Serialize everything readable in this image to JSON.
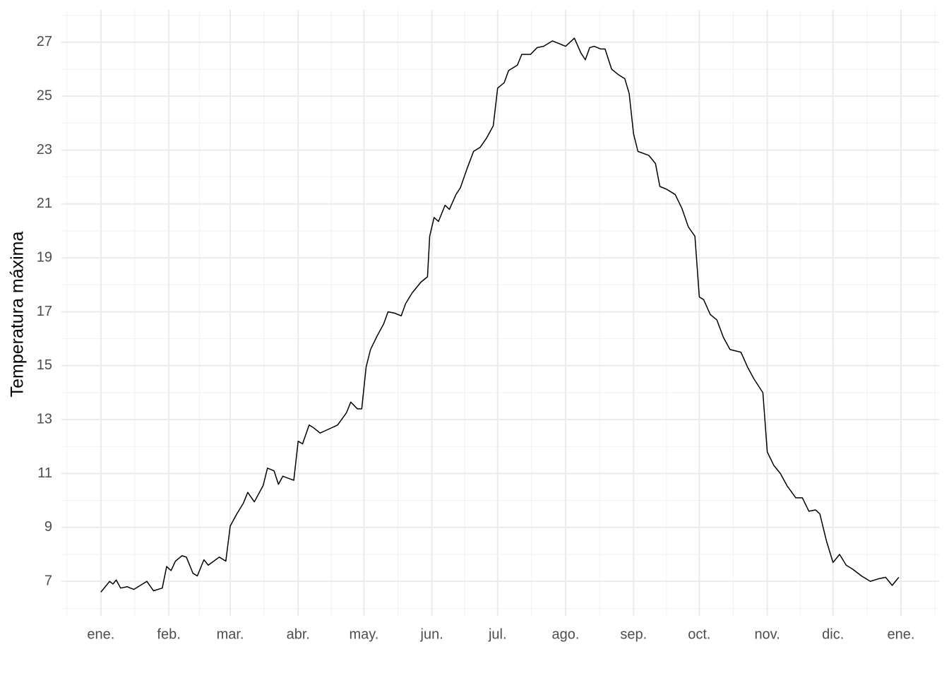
{
  "chart_data": {
    "type": "line",
    "y_label": "Temperatura máxima",
    "color": "#000000",
    "grid": true,
    "x": [
      0,
      2,
      4,
      5.5,
      7,
      9,
      12,
      15,
      18,
      21,
      24,
      28,
      30,
      32,
      34,
      37,
      39,
      42,
      44,
      47,
      49,
      54,
      57,
      59,
      62,
      65,
      67,
      70,
      74,
      76,
      79,
      81,
      83,
      88,
      90,
      92,
      95,
      97,
      100,
      104,
      108,
      112,
      114,
      117,
      119,
      121,
      123,
      126,
      129,
      131,
      134,
      137,
      139,
      142,
      146,
      149,
      150,
      152,
      154,
      157,
      159,
      162,
      164,
      167,
      170,
      173,
      176,
      179,
      181,
      184,
      186,
      190,
      192,
      196,
      199,
      202,
      206,
      209,
      212,
      214,
      216,
      219,
      221,
      223,
      225,
      228,
      230,
      233,
      236,
      239,
      241,
      243,
      245,
      250,
      253,
      255,
      258,
      262,
      265,
      268,
      271,
      273,
      275,
      278,
      281,
      284,
      287,
      292,
      295,
      298,
      302,
      304,
      307,
      310,
      313,
      317,
      320,
      323,
      326,
      328,
      331,
      334,
      337,
      340,
      343,
      347,
      351,
      355,
      358,
      361,
      364
    ],
    "values": [
      6.6,
      6.8,
      7.0,
      6.9,
      7.05,
      6.75,
      6.8,
      6.7,
      6.85,
      7.0,
      6.65,
      6.75,
      7.55,
      7.4,
      7.75,
      7.95,
      7.9,
      7.3,
      7.2,
      7.8,
      7.6,
      7.9,
      7.75,
      9.05,
      9.5,
      9.9,
      10.3,
      9.95,
      10.55,
      11.2,
      11.1,
      10.6,
      10.9,
      10.75,
      12.2,
      12.1,
      12.8,
      12.7,
      12.5,
      12.65,
      12.8,
      13.25,
      13.65,
      13.4,
      13.4,
      14.95,
      15.6,
      16.1,
      16.55,
      17.0,
      16.95,
      16.85,
      17.3,
      17.7,
      18.1,
      18.3,
      19.8,
      20.5,
      20.35,
      20.95,
      20.8,
      21.35,
      21.6,
      22.3,
      22.95,
      23.1,
      23.45,
      23.9,
      25.3,
      25.5,
      25.95,
      26.15,
      26.55,
      26.55,
      26.8,
      26.85,
      27.05,
      26.95,
      26.85,
      27.0,
      27.15,
      26.6,
      26.35,
      26.8,
      26.85,
      26.75,
      26.75,
      26.0,
      25.8,
      25.65,
      25.1,
      23.6,
      22.95,
      22.8,
      22.5,
      21.65,
      21.55,
      21.35,
      20.85,
      20.15,
      19.8,
      17.55,
      17.45,
      16.9,
      16.7,
      16.05,
      15.6,
      15.5,
      14.95,
      14.5,
      14.0,
      11.8,
      11.3,
      11.0,
      10.55,
      10.1,
      10.1,
      9.6,
      9.65,
      9.5,
      8.5,
      7.7,
      8.0,
      7.6,
      7.45,
      7.2,
      7.0,
      7.1,
      7.15,
      6.85,
      7.15
    ],
    "xlim": [
      -18,
      382.4
    ],
    "xticks": [
      {
        "value": 0,
        "label": "ene."
      },
      {
        "value": 31,
        "label": "feb."
      },
      {
        "value": 59,
        "label": "mar."
      },
      {
        "value": 90,
        "label": "abr."
      },
      {
        "value": 120,
        "label": "may."
      },
      {
        "value": 151,
        "label": "jun."
      },
      {
        "value": 181,
        "label": "jul."
      },
      {
        "value": 212,
        "label": "ago."
      },
      {
        "value": 243,
        "label": "sep."
      },
      {
        "value": 273,
        "label": "oct."
      },
      {
        "value": 304,
        "label": "nov."
      },
      {
        "value": 334,
        "label": "dic."
      },
      {
        "value": 365,
        "label": "ene."
      }
    ],
    "ylim": [
      5.72,
      28.2
    ],
    "yticks": [
      7,
      9,
      11,
      13,
      15,
      17,
      19,
      21,
      23,
      25,
      27
    ]
  }
}
